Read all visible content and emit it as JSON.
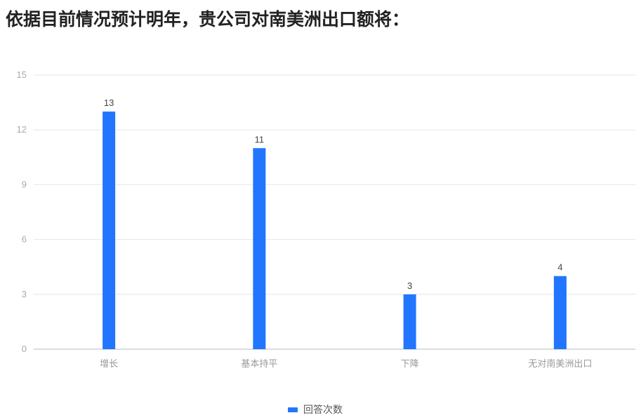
{
  "title": "依据目前情况预计明年，贵公司对南美洲出口额将：",
  "chart_data": {
    "type": "bar",
    "categories": [
      "增长",
      "基本持平",
      "下降",
      "无对南美洲出口"
    ],
    "series": [
      {
        "name": "回答次数",
        "values": [
          13,
          11,
          3,
          4
        ],
        "color": "#2175ff"
      }
    ],
    "ylim": [
      0,
      15
    ],
    "yticks": [
      0,
      3,
      6,
      9,
      12,
      15
    ],
    "grid": true,
    "legend": "bottom"
  }
}
